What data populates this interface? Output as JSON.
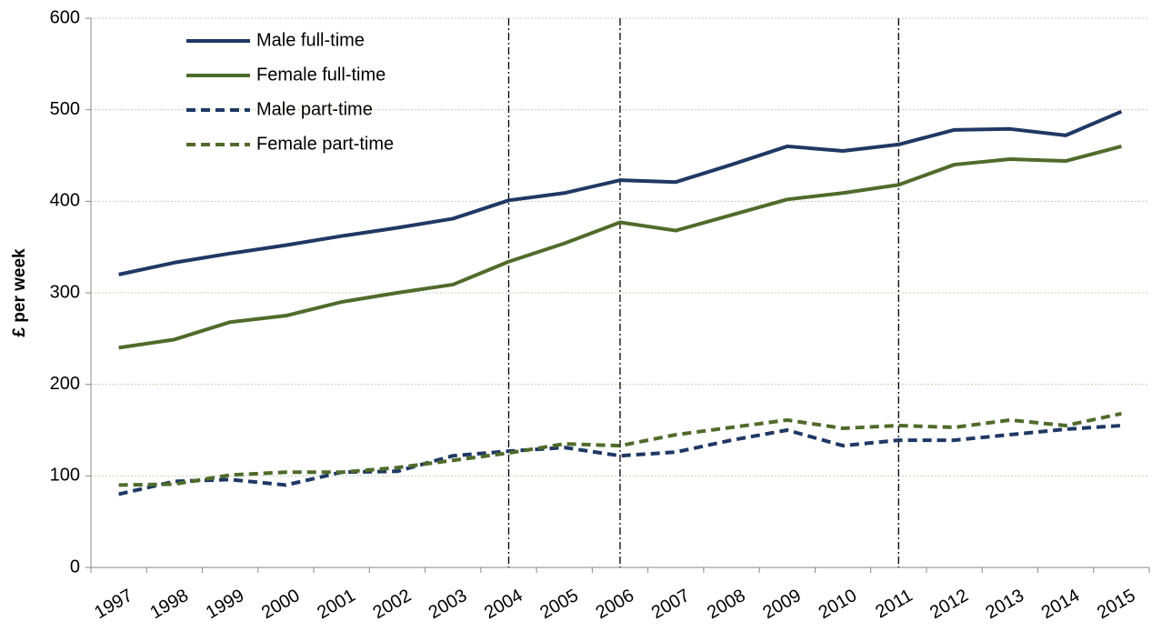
{
  "chart_data": {
    "type": "line",
    "y_label": "£ per week",
    "categories": [
      "1997",
      "1998",
      "1999",
      "2000",
      "2001",
      "2002",
      "2003",
      "2004",
      "2005",
      "2006",
      "2007",
      "2008",
      "2009",
      "2010",
      "2011",
      "2012",
      "2013",
      "2014",
      "2015"
    ],
    "series": [
      {
        "name": "Male full-time",
        "color": "#1f3864",
        "dash": false,
        "values": [
          320,
          333,
          343,
          352,
          362,
          371,
          381,
          401,
          409,
          423,
          421,
          440,
          460,
          455,
          462,
          478,
          479,
          472,
          498
        ]
      },
      {
        "name": "Female full-time",
        "color": "#4f6b2a",
        "dash": false,
        "values": [
          240,
          249,
          268,
          275,
          290,
          300,
          309,
          334,
          354,
          377,
          368,
          385,
          402,
          409,
          418,
          440,
          446,
          444,
          460
        ]
      },
      {
        "name": "Male part-time",
        "color": "#1f3864",
        "dash": true,
        "values": [
          80,
          94,
          96,
          90,
          104,
          105,
          122,
          127,
          131,
          122,
          126,
          139,
          150,
          133,
          139,
          139,
          145,
          151,
          155
        ]
      },
      {
        "name": "Female part-time",
        "color": "#4f6b2a",
        "dash": true,
        "values": [
          90,
          91,
          101,
          104,
          104,
          109,
          117,
          125,
          135,
          133,
          145,
          153,
          161,
          152,
          155,
          153,
          161,
          155,
          168
        ]
      }
    ],
    "vertical_lines": [
      "2004",
      "2006",
      "2011"
    ],
    "ylim": [
      0,
      600
    ],
    "yticks": [
      0,
      100,
      200,
      300,
      400,
      500,
      600
    ],
    "grid": true,
    "legend": "top-left"
  }
}
